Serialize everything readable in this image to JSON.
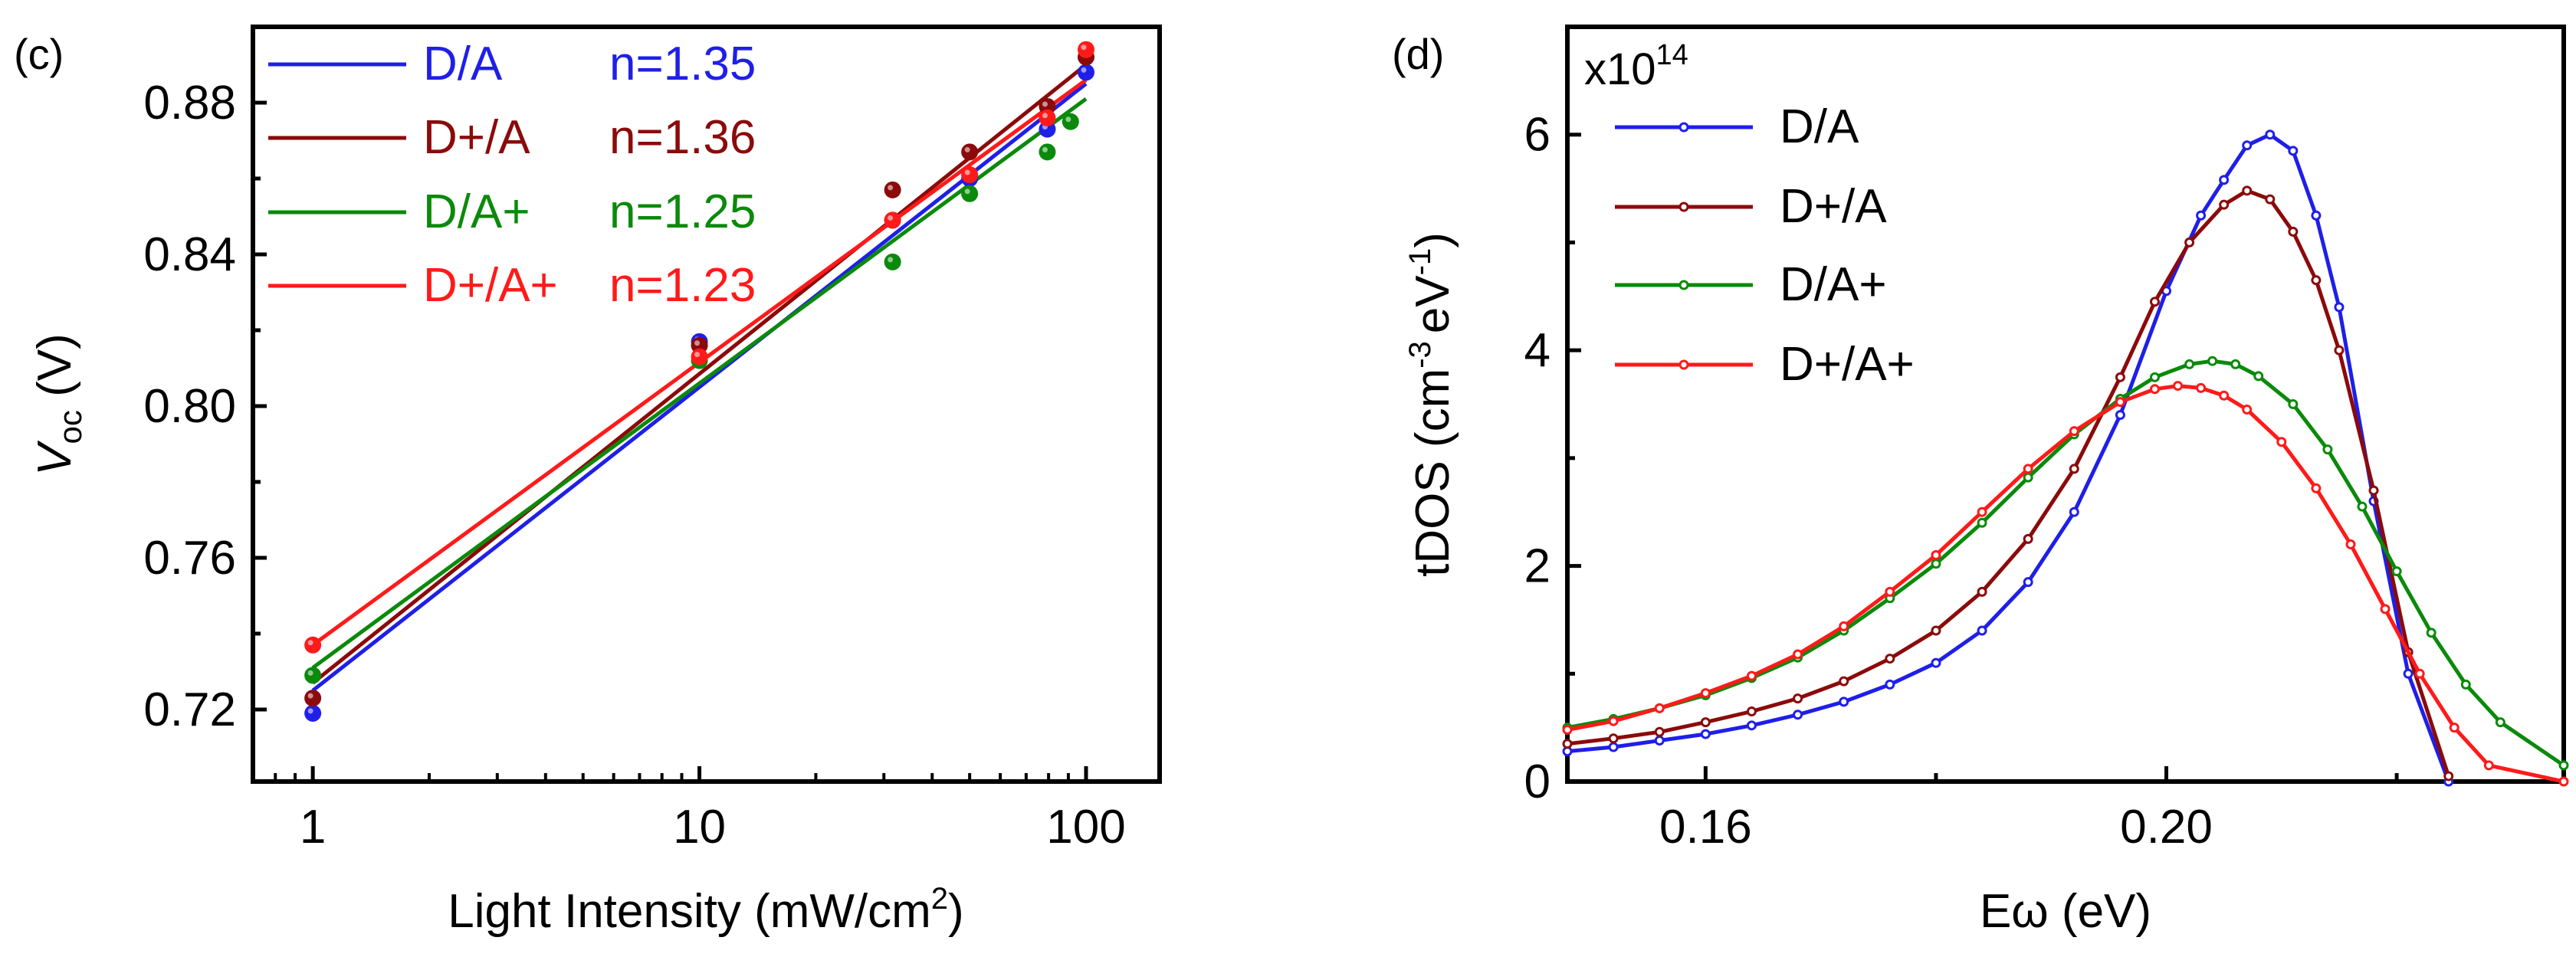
{
  "colors": {
    "axis": "#000000",
    "D/A": "#1f1fe8",
    "D+/A": "#8b0a0a",
    "D/A+": "#0a8a0a",
    "D+/A+": "#ff1a1a"
  },
  "chart_data": [
    {
      "panel": "(c)",
      "type": "scatter",
      "title": "",
      "xlabel": "Light Intensity (mW/cm",
      "xlabel_sup": "2",
      "xlabel_tail": ")",
      "ylabel_main": "V",
      "ylabel_sub": "oc",
      "ylabel_tail": " (V)",
      "xscale": "log",
      "xlim": [
        0.7,
        155
      ],
      "ylim": [
        0.701,
        0.9
      ],
      "xticks": [
        1,
        10,
        100
      ],
      "xtick_labels": [
        "1",
        "10",
        "100"
      ],
      "yticks": [
        0.72,
        0.76,
        0.8,
        0.84,
        0.88
      ],
      "ytick_labels": [
        "0.72",
        "0.76",
        "0.80",
        "0.84",
        "0.88"
      ],
      "grid": false,
      "legend_position": "top-left",
      "series": [
        {
          "name": "D/A",
          "annotation": "n=1.35",
          "x": [
            1,
            10,
            31.6,
            50,
            79.4,
            100
          ],
          "y": [
            0.719,
            0.817,
            0.849,
            0.86,
            0.873,
            0.888
          ],
          "fit": [
            [
              1,
              0.725
            ],
            [
              100,
              0.885
            ]
          ]
        },
        {
          "name": "D+/A",
          "annotation": "n=1.36",
          "x": [
            1,
            10,
            31.6,
            50,
            79.4,
            100
          ],
          "y": [
            0.723,
            0.816,
            0.857,
            0.867,
            0.879,
            0.892
          ],
          "fit": [
            [
              1,
              0.727
            ],
            [
              100,
              0.89
            ]
          ]
        },
        {
          "name": "D/A+",
          "annotation": "n=1.25",
          "x": [
            1,
            10,
            31.6,
            50,
            79.4,
            91.2
          ],
          "y": [
            0.729,
            0.812,
            0.838,
            0.856,
            0.867,
            0.875
          ],
          "fit": [
            [
              1,
              0.731
            ],
            [
              100,
              0.881
            ]
          ]
        },
        {
          "name": "D+/A+",
          "annotation": "n=1.23",
          "x": [
            1,
            10,
            31.6,
            50,
            79.4,
            100
          ],
          "y": [
            0.737,
            0.813,
            0.849,
            0.861,
            0.876,
            0.894
          ],
          "fit": [
            [
              1,
              0.737
            ],
            [
              100,
              0.886
            ]
          ]
        }
      ]
    },
    {
      "panel": "(d)",
      "type": "line",
      "title": "",
      "xlabel": "Eω (eV)",
      "ylabel_main": "tDOS (cm",
      "ylabel_sup1": "-3",
      "ylabel_mid": "eV",
      "ylabel_sup2": "-1",
      "ylabel_tail": ")",
      "multiplier": "x10",
      "multiplier_exp": "14",
      "xlim": [
        0.148,
        0.2345
      ],
      "ylim": [
        0,
        7
      ],
      "xticks": [
        0.16,
        0.2
      ],
      "xtick_labels": [
        "0.16",
        "0.20"
      ],
      "yticks": [
        0,
        2,
        4,
        6
      ],
      "ytick_labels": [
        "0",
        "2",
        "4",
        "6"
      ],
      "grid": false,
      "legend_position": "top-left",
      "series": [
        {
          "name": "D/A",
          "x": [
            0.148,
            0.152,
            0.156,
            0.16,
            0.164,
            0.168,
            0.172,
            0.176,
            0.18,
            0.184,
            0.188,
            0.192,
            0.196,
            0.2,
            0.203,
            0.205,
            0.207,
            0.209,
            0.211,
            0.213,
            0.215,
            0.218,
            0.221,
            0.2245
          ],
          "y": [
            0.28,
            0.32,
            0.38,
            0.44,
            0.52,
            0.62,
            0.74,
            0.9,
            1.1,
            1.4,
            1.85,
            2.5,
            3.4,
            4.55,
            5.25,
            5.58,
            5.9,
            6.0,
            5.85,
            5.25,
            4.4,
            2.6,
            1.0,
            0.0
          ]
        },
        {
          "name": "D+/A",
          "x": [
            0.148,
            0.152,
            0.156,
            0.16,
            0.164,
            0.168,
            0.172,
            0.176,
            0.18,
            0.184,
            0.188,
            0.192,
            0.196,
            0.199,
            0.202,
            0.205,
            0.207,
            0.209,
            0.211,
            0.213,
            0.215,
            0.218,
            0.221,
            0.2245
          ],
          "y": [
            0.35,
            0.4,
            0.46,
            0.55,
            0.65,
            0.77,
            0.93,
            1.14,
            1.4,
            1.76,
            2.25,
            2.9,
            3.75,
            4.45,
            5.0,
            5.35,
            5.48,
            5.4,
            5.1,
            4.65,
            4.0,
            2.7,
            1.2,
            0.05
          ]
        },
        {
          "name": "D/A+",
          "x": [
            0.148,
            0.152,
            0.156,
            0.16,
            0.164,
            0.168,
            0.172,
            0.176,
            0.18,
            0.184,
            0.188,
            0.192,
            0.196,
            0.199,
            0.202,
            0.204,
            0.206,
            0.208,
            0.211,
            0.214,
            0.217,
            0.22,
            0.223,
            0.226,
            0.229,
            0.2345
          ],
          "y": [
            0.5,
            0.58,
            0.68,
            0.8,
            0.96,
            1.15,
            1.4,
            1.7,
            2.02,
            2.4,
            2.82,
            3.22,
            3.55,
            3.75,
            3.87,
            3.9,
            3.87,
            3.76,
            3.5,
            3.08,
            2.55,
            1.95,
            1.38,
            0.9,
            0.55,
            0.15
          ]
        },
        {
          "name": "D+/A+",
          "x": [
            0.148,
            0.152,
            0.156,
            0.16,
            0.164,
            0.168,
            0.172,
            0.176,
            0.18,
            0.184,
            0.188,
            0.192,
            0.196,
            0.199,
            0.201,
            0.203,
            0.205,
            0.207,
            0.21,
            0.213,
            0.216,
            0.219,
            0.222,
            0.225,
            0.228,
            0.2345
          ],
          "y": [
            0.48,
            0.56,
            0.68,
            0.82,
            0.98,
            1.18,
            1.44,
            1.76,
            2.1,
            2.5,
            2.9,
            3.25,
            3.52,
            3.64,
            3.67,
            3.65,
            3.58,
            3.45,
            3.15,
            2.72,
            2.2,
            1.6,
            1.0,
            0.5,
            0.15,
            0.0
          ]
        }
      ]
    }
  ]
}
